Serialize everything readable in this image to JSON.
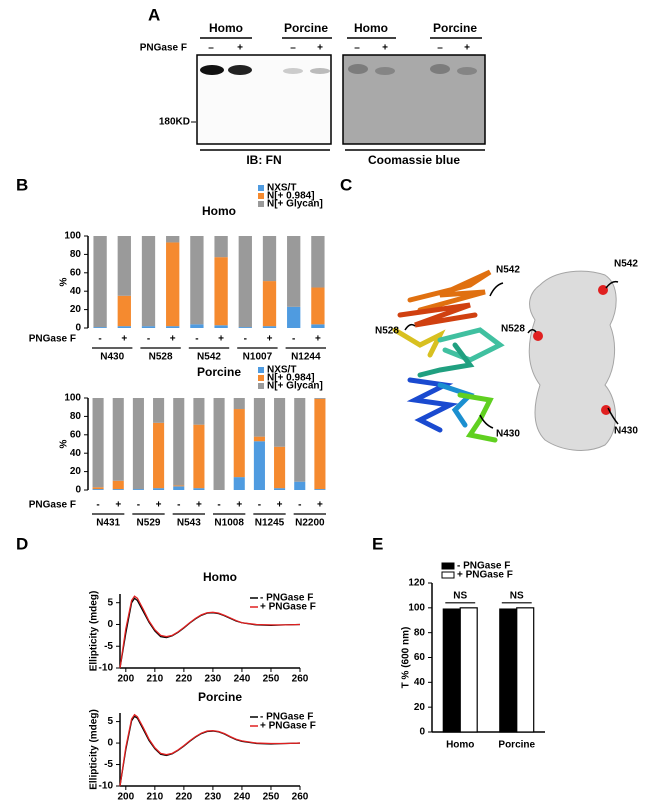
{
  "panel_labels": [
    "A",
    "B",
    "C",
    "D",
    "E"
  ],
  "gel": {
    "groups": [
      "Homo",
      "Porcine",
      "Homo",
      "Porcine"
    ],
    "treatment_label": "PNGase F",
    "signs": [
      "–",
      "+"
    ],
    "marker": "180KD",
    "blot_labels": [
      "IB: FN",
      "Coomassie blue"
    ]
  },
  "structure": {
    "labels": [
      "N542",
      "N528",
      "N430",
      "N542",
      "N528",
      "N430"
    ]
  },
  "chart_data": [
    {
      "type": "stacked_bar",
      "title": "Homo",
      "y_label": "%",
      "x_label": "PNGase F",
      "categories": [
        "-",
        "+",
        "-",
        "+",
        "-",
        "+",
        "-",
        "+",
        "-",
        "+"
      ],
      "groups": [
        "N430",
        "N528",
        "N542",
        "N1007",
        "N1244"
      ],
      "series": [
        {
          "name": "NXS/T",
          "color": "#4f9be0",
          "values": [
            1,
            2,
            2,
            2,
            4,
            3,
            1,
            2,
            23,
            4
          ]
        },
        {
          "name": "N[+ 0.984]",
          "color": "#f58a2f",
          "values": [
            0,
            33,
            0,
            91,
            0,
            74,
            0,
            49,
            0,
            40
          ]
        },
        {
          "name": "N[+ Glycan]",
          "color": "#9a9a9a",
          "values": [
            99,
            65,
            98,
            7,
            96,
            23,
            99,
            49,
            77,
            56
          ]
        }
      ],
      "ylim": [
        0,
        100
      ],
      "yticks": [
        0,
        20,
        40,
        60,
        80,
        100
      ]
    },
    {
      "type": "stacked_bar",
      "title": "Porcine",
      "y_label": "%",
      "x_label": "PNGase F",
      "categories": [
        "-",
        "+",
        "-",
        "+",
        "-",
        "+",
        "-",
        "+",
        "-",
        "+",
        "-",
        "+"
      ],
      "groups": [
        "N431",
        "N529",
        "N543",
        "N1008",
        "N1245",
        "N2200"
      ],
      "series": [
        {
          "name": "NXS/T",
          "color": "#4f9be0",
          "values": [
            1,
            1,
            1,
            2,
            4,
            2,
            0,
            14,
            53,
            2,
            9,
            1
          ]
        },
        {
          "name": "N[+ 0.984]",
          "color": "#f58a2f",
          "values": [
            2,
            9,
            0,
            71,
            1,
            69,
            0,
            74,
            5,
            45,
            0,
            98
          ]
        },
        {
          "name": "N[+ Glycan]",
          "color": "#9a9a9a",
          "values": [
            97,
            90,
            99,
            27,
            95,
            29,
            100,
            12,
            42,
            53,
            91,
            1
          ]
        }
      ],
      "ylim": [
        0,
        100
      ],
      "yticks": [
        0,
        20,
        40,
        60,
        80,
        100
      ]
    },
    {
      "type": "line",
      "title": "Homo",
      "y_label": "Ellipticity (mdeg)",
      "x": [
        198,
        200,
        202,
        203,
        204,
        206,
        208,
        210,
        212,
        214,
        216,
        218,
        220,
        222,
        224,
        226,
        228,
        230,
        232,
        234,
        236,
        238,
        240,
        245,
        250,
        255,
        260
      ],
      "series": [
        {
          "name": "- PNGase F",
          "color": "#000000",
          "values": [
            -10,
            -2,
            5,
            6,
            5.5,
            3,
            0.5,
            -1.5,
            -2.8,
            -3,
            -2.6,
            -1.8,
            -0.8,
            0.3,
            1.3,
            2.1,
            2.6,
            2.7,
            2.5,
            2,
            1.4,
            0.8,
            0.4,
            -0.1,
            -0.2,
            -0.1,
            0
          ]
        },
        {
          "name": "+ PNGase F",
          "color": "#e02020",
          "values": [
            -10,
            -1,
            5.5,
            6.5,
            6,
            3.5,
            0.8,
            -1.2,
            -2.5,
            -2.8,
            -2.5,
            -1.7,
            -0.7,
            0.4,
            1.4,
            2.2,
            2.7,
            2.8,
            2.6,
            2.1,
            1.5,
            0.9,
            0.4,
            0,
            -0.1,
            -0.1,
            0
          ]
        }
      ],
      "xlim": [
        198,
        260
      ],
      "xticks": [
        200,
        210,
        220,
        230,
        240,
        250,
        260
      ],
      "ylim": [
        -10,
        7
      ],
      "yticks": [
        -10,
        -5,
        0,
        5
      ]
    },
    {
      "type": "line",
      "title": "Porcine",
      "y_label": "Ellipticity (mdeg)",
      "x": [
        198,
        200,
        202,
        203,
        204,
        206,
        208,
        210,
        212,
        214,
        216,
        218,
        220,
        222,
        224,
        226,
        228,
        230,
        232,
        234,
        236,
        238,
        240,
        245,
        250,
        255,
        260
      ],
      "series": [
        {
          "name": "- PNGase F",
          "color": "#000000",
          "values": [
            -10,
            -1.5,
            5.2,
            6.2,
            5.8,
            3.2,
            0.6,
            -1.3,
            -2.6,
            -2.9,
            -2.5,
            -1.7,
            -0.7,
            0.4,
            1.4,
            2.2,
            2.7,
            2.8,
            2.6,
            2.1,
            1.4,
            0.8,
            0.4,
            -0.1,
            -0.2,
            -0.1,
            0
          ]
        },
        {
          "name": "+ PNGase F",
          "color": "#e02020",
          "values": [
            -10,
            -1,
            5.6,
            6.6,
            6.1,
            3.6,
            0.9,
            -1.1,
            -2.4,
            -2.7,
            -2.4,
            -1.6,
            -0.6,
            0.5,
            1.5,
            2.3,
            2.8,
            2.9,
            2.7,
            2.2,
            1.5,
            0.9,
            0.5,
            0,
            -0.1,
            -0.1,
            0
          ]
        }
      ],
      "xlim": [
        198,
        260
      ],
      "xticks": [
        200,
        210,
        220,
        230,
        240,
        250,
        260
      ],
      "ylim": [
        -10,
        7
      ],
      "yticks": [
        -10,
        -5,
        0,
        5
      ]
    },
    {
      "type": "bar",
      "y_label": "T % (600 nm)",
      "categories": [
        "Homo",
        "Porcine"
      ],
      "series": [
        {
          "name": "- PNGase F",
          "color": "#000000",
          "values": [
            99,
            99
          ]
        },
        {
          "name": "+ PNGase F",
          "color": "#ffffff",
          "values": [
            100,
            100
          ]
        }
      ],
      "annotations": [
        "NS",
        "NS"
      ],
      "ylim": [
        0,
        120
      ],
      "yticks": [
        0,
        20,
        40,
        60,
        80,
        100,
        120
      ]
    }
  ]
}
